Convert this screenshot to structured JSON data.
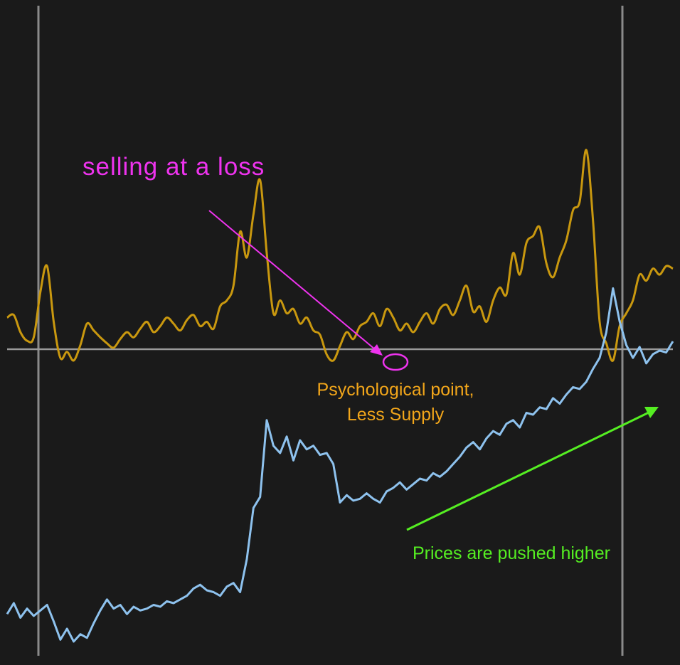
{
  "colors": {
    "background": "#1a1a1a",
    "vline": "#8a8a8a",
    "hline": "#9a9a9a",
    "oscillator": "#c9980f",
    "price": "#8ec2ee",
    "loss_annotation": "#ee33ee",
    "psych_annotation": "#f2a61a",
    "push_annotation": "#55ee22"
  },
  "annotations": {
    "loss": "selling at a loss",
    "psych_line1": "Psychological point,",
    "psych_line2": "Less Supply",
    "push": "Prices are pushed higher"
  },
  "chart_data": {
    "type": "line",
    "title": "",
    "xlabel": "",
    "ylabel": "",
    "grid": false,
    "legend": "none",
    "series": [
      {
        "key": "oscillator",
        "x": [
          0,
          1,
          2,
          3,
          4,
          5,
          6,
          7,
          8,
          9,
          10,
          11,
          12,
          13,
          14,
          15,
          16,
          17,
          18,
          19,
          20,
          21,
          22,
          23,
          24,
          25,
          26,
          27,
          28,
          29,
          30,
          31,
          32,
          33,
          34,
          35,
          36,
          37,
          38,
          39,
          40,
          41,
          42,
          43,
          44,
          45,
          46,
          47,
          48,
          49,
          50,
          51,
          52,
          53,
          54,
          55,
          56,
          57,
          58,
          59,
          60,
          61,
          62,
          63,
          64,
          65,
          66,
          67,
          68,
          69,
          70,
          71,
          72,
          73,
          74,
          75,
          76,
          77,
          78,
          79,
          80,
          81,
          82,
          83,
          84,
          85,
          86,
          87,
          88,
          89,
          90,
          91,
          92,
          93,
          94,
          95,
          96,
          97,
          98,
          99,
          100
        ],
        "y": [
          0.35,
          0.38,
          0.18,
          0.08,
          0.12,
          0.65,
          0.95,
          0.3,
          -0.12,
          -0.05,
          -0.15,
          0.03,
          0.28,
          0.2,
          0.12,
          0.05,
          0.0,
          0.1,
          0.18,
          0.12,
          0.22,
          0.3,
          0.18,
          0.25,
          0.35,
          0.28,
          0.2,
          0.32,
          0.38,
          0.25,
          0.3,
          0.22,
          0.48,
          0.55,
          0.72,
          1.35,
          1.05,
          1.55,
          1.95,
          1.1,
          0.4,
          0.55,
          0.4,
          0.45,
          0.28,
          0.35,
          0.2,
          0.15,
          -0.08,
          -0.15,
          0.02,
          0.18,
          0.1,
          0.25,
          0.3,
          0.4,
          0.25,
          0.45,
          0.35,
          0.2,
          0.28,
          0.18,
          0.3,
          0.4,
          0.28,
          0.45,
          0.5,
          0.38,
          0.55,
          0.72,
          0.42,
          0.48,
          0.3,
          0.55,
          0.7,
          0.62,
          1.1,
          0.85,
          1.22,
          1.3,
          1.4,
          0.98,
          0.82,
          1.05,
          1.25,
          1.6,
          1.7,
          2.3,
          1.48,
          0.3,
          0.05,
          -0.15,
          0.25,
          0.4,
          0.55,
          0.85,
          0.78,
          0.92,
          0.85,
          0.95,
          0.92
        ],
        "ylim": [
          -0.3,
          2.35
        ]
      },
      {
        "key": "price",
        "x": [
          0,
          1,
          2,
          3,
          4,
          5,
          6,
          7,
          8,
          9,
          10,
          11,
          12,
          13,
          14,
          15,
          16,
          17,
          18,
          19,
          20,
          21,
          22,
          23,
          24,
          25,
          26,
          27,
          28,
          29,
          30,
          31,
          32,
          33,
          34,
          35,
          36,
          37,
          38,
          39,
          40,
          41,
          42,
          43,
          44,
          45,
          46,
          47,
          48,
          49,
          50,
          51,
          52,
          53,
          54,
          55,
          56,
          57,
          58,
          59,
          60,
          61,
          62,
          63,
          64,
          65,
          66,
          67,
          68,
          69,
          70,
          71,
          72,
          73,
          74,
          75,
          76,
          77,
          78,
          79,
          80,
          81,
          82,
          83,
          84,
          85,
          86,
          87,
          88,
          89,
          90,
          91,
          92,
          93,
          94,
          95,
          96,
          97,
          98,
          99,
          100
        ],
        "y": [
          1.6,
          1.9,
          1.5,
          1.75,
          1.55,
          1.7,
          1.85,
          1.4,
          0.9,
          1.2,
          0.85,
          1.05,
          0.95,
          1.35,
          1.7,
          2.0,
          1.75,
          1.85,
          1.6,
          1.8,
          1.7,
          1.75,
          1.85,
          1.8,
          1.95,
          1.9,
          2.0,
          2.1,
          2.3,
          2.4,
          2.25,
          2.2,
          2.1,
          2.35,
          2.45,
          2.2,
          3.1,
          4.5,
          4.8,
          6.9,
          6.2,
          6.0,
          6.45,
          5.8,
          6.35,
          6.1,
          6.2,
          5.95,
          6.0,
          5.7,
          4.65,
          4.85,
          4.7,
          4.75,
          4.9,
          4.75,
          4.65,
          4.95,
          5.05,
          5.2,
          5.0,
          5.15,
          5.3,
          5.25,
          5.45,
          5.35,
          5.5,
          5.7,
          5.9,
          6.15,
          6.3,
          6.1,
          6.4,
          6.6,
          6.5,
          6.8,
          6.9,
          6.7,
          7.1,
          7.05,
          7.25,
          7.2,
          7.5,
          7.35,
          7.6,
          7.8,
          7.75,
          7.95,
          8.3,
          8.6,
          9.3,
          10.5,
          9.6,
          8.95,
          8.6,
          8.9,
          8.45,
          8.7,
          8.8,
          8.75,
          9.05
        ],
        "ylim": [
          0.5,
          10.8
        ]
      }
    ]
  }
}
